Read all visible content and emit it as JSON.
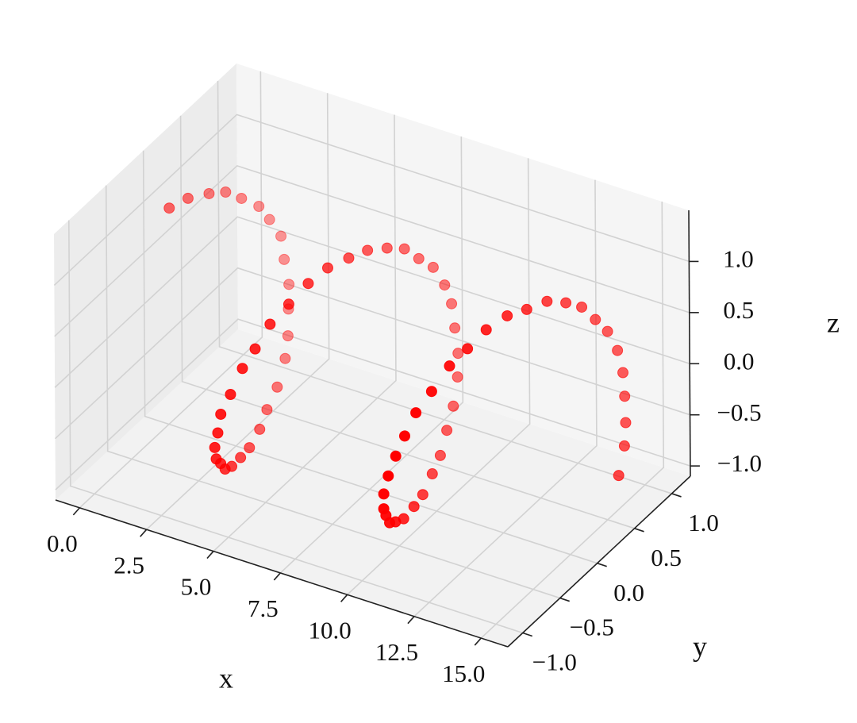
{
  "chart_data": {
    "type": "scatter3d",
    "x_label": "x",
    "y_label": "y",
    "z_label": "z",
    "color": "#ff0000",
    "xlim": [
      -0.9,
      16.0
    ],
    "ylim": [
      -1.2,
      1.25
    ],
    "zlim": [
      -1.1,
      1.5
    ],
    "xticks": [
      {
        "value": 0,
        "label": "0.0"
      },
      2.5,
      {
        "value": 5,
        "label": "5.0"
      },
      7.5,
      {
        "value": 10,
        "label": "10.0"
      },
      12.5,
      {
        "value": 15,
        "label": "15.0"
      }
    ],
    "yticks": [
      {
        "value": -1,
        "label": "−1.0"
      },
      {
        "value": -0.5,
        "label": "−0.5"
      },
      {
        "value": 0,
        "label": "0.0"
      },
      0.5,
      {
        "value": 1,
        "label": "1.0"
      }
    ],
    "zticks": [
      {
        "value": -1,
        "label": "−1.0"
      },
      {
        "value": -0.5,
        "label": "−0.5"
      },
      {
        "value": 0,
        "label": "0.0"
      },
      0.5,
      {
        "value": 1,
        "label": "1.0"
      }
    ],
    "x": [
      0.0,
      0.2,
      0.4,
      0.6,
      0.8,
      1.0,
      1.2,
      1.4,
      1.6,
      1.8,
      2.0,
      2.2,
      2.4,
      2.6,
      2.8,
      3.0,
      3.2,
      3.4,
      3.6,
      3.8,
      4.0,
      4.2,
      4.4,
      4.6,
      4.8,
      5.0,
      5.2,
      5.4,
      5.6,
      5.8,
      6.0,
      6.2,
      6.4,
      6.6,
      6.8,
      7.0,
      7.2,
      7.4,
      7.6,
      7.8,
      8.0,
      8.2,
      8.4,
      8.6,
      8.8,
      9.0,
      9.2,
      9.4,
      9.6,
      9.8,
      10.0,
      10.2,
      10.4,
      10.6,
      10.8,
      11.0,
      11.2,
      11.4,
      11.6,
      11.8,
      12.0,
      12.2,
      12.4,
      12.6,
      12.8,
      13.0,
      13.2,
      13.4,
      13.6,
      13.8,
      14.0,
      14.2,
      14.4,
      14.6,
      14.8,
      15.0
    ],
    "y": [
      0.02,
      0.2,
      0.41,
      0.56,
      0.7,
      0.86,
      0.93,
      1.01,
      0.98,
      0.97,
      0.89,
      0.81,
      0.7,
      0.52,
      0.31,
      0.14,
      -0.07,
      -0.26,
      -0.45,
      -0.61,
      -0.74,
      -0.87,
      -0.96,
      -0.99,
      -1.02,
      -0.96,
      -0.87,
      -0.77,
      -0.64,
      -0.46,
      -0.27,
      -0.08,
      0.13,
      0.31,
      0.5,
      0.66,
      0.78,
      0.9,
      0.98,
      1.0,
      0.97,
      0.94,
      0.86,
      0.73,
      0.57,
      0.41,
      0.23,
      0.03,
      -0.16,
      -0.37,
      -0.55,
      -0.7,
      -0.82,
      -0.92,
      -0.99,
      -1.0,
      -0.97,
      -0.92,
      -0.84,
      -0.7,
      -0.53,
      -0.36,
      -0.18,
      0.03,
      0.22,
      0.42,
      0.6,
      0.74,
      0.85,
      0.94,
      1.0,
      1.0,
      0.95,
      0.89,
      0.8,
      0.65
    ],
    "z": [
      1.0,
      0.99,
      0.91,
      0.84,
      0.7,
      0.53,
      0.37,
      0.17,
      -0.02,
      -0.24,
      -0.41,
      -0.6,
      -0.73,
      -0.87,
      -0.93,
      -0.99,
      -1.01,
      -0.96,
      -0.9,
      -0.8,
      -0.64,
      -0.49,
      -0.3,
      -0.12,
      0.1,
      0.27,
      0.48,
      0.62,
      0.79,
      0.88,
      0.97,
      1.01,
      0.98,
      0.95,
      0.86,
      0.76,
      0.6,
      0.45,
      0.24,
      0.06,
      -0.14,
      -0.35,
      -0.51,
      -0.69,
      -0.8,
      -0.92,
      -0.96,
      -1.01,
      -0.98,
      -0.94,
      -0.83,
      -0.72,
      -0.55,
      -0.4,
      -0.19,
      0.01,
      0.2,
      0.38,
      0.57,
      0.7,
      0.85,
      0.92,
      1.0,
      1.01,
      0.96,
      0.92,
      0.8,
      0.68,
      0.5,
      0.34,
      0.13,
      -0.07,
      -0.25,
      -0.45,
      -0.6,
      -0.77
    ]
  }
}
